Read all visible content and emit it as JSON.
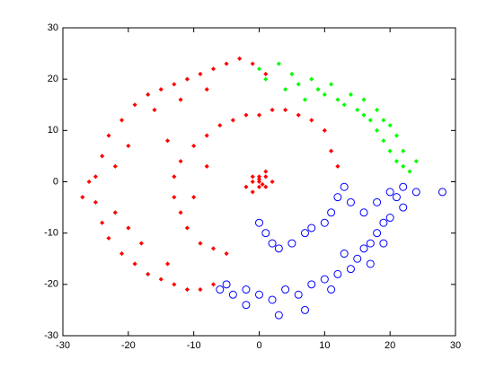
{
  "chart_data": {
    "type": "scatter",
    "xlim": [
      -30,
      30
    ],
    "ylim": [
      -30,
      30
    ],
    "xticks": [
      -30,
      -20,
      -10,
      0,
      10,
      20,
      30
    ],
    "yticks": [
      -30,
      -20,
      -10,
      0,
      10,
      20,
      30
    ],
    "series": [
      {
        "color": "#ff0000",
        "marker": "dot",
        "x": [
          -27,
          -25,
          -24,
          -23,
          -21,
          -19,
          -17,
          -15,
          -13,
          -11,
          -9,
          -7,
          -5,
          -3,
          -1,
          1,
          -25,
          -24,
          -23,
          -21,
          -19,
          -17,
          -15,
          -13,
          -11,
          -9,
          -7,
          -20,
          -22,
          -22,
          -18,
          -16,
          -12,
          -8,
          -26,
          -20,
          -14,
          8,
          6,
          4,
          2,
          0,
          -2,
          -4,
          -6,
          -8,
          -10,
          -12,
          -13,
          -13,
          -12,
          -11,
          -9,
          -7,
          -5,
          10,
          11,
          12,
          -14,
          -10,
          -8,
          0,
          1,
          -1,
          0,
          1,
          -1,
          2,
          0,
          -2,
          1,
          -1,
          0,
          0.5
        ],
        "values": [
          -3,
          1,
          5,
          9,
          12,
          15,
          17,
          18,
          19,
          20,
          21,
          22,
          23,
          24,
          23,
          21,
          -4,
          -8,
          -11,
          -14,
          -16,
          -18,
          -19,
          -20,
          -21,
          -21,
          -20,
          7,
          3,
          -6,
          -12,
          14,
          16,
          18,
          0,
          -9,
          -16,
          12,
          13,
          14,
          14,
          13,
          13,
          12,
          11,
          9,
          7,
          4,
          1,
          -3,
          -6,
          -9,
          -12,
          -13,
          -14,
          10,
          6,
          3,
          8,
          -3,
          3,
          0,
          1,
          0,
          1,
          -1,
          1,
          0,
          -1,
          -1,
          2,
          -2,
          0.5,
          -0.5
        ]
      },
      {
        "color": "#00ff00",
        "marker": "dot",
        "x": [
          0,
          1,
          3,
          5,
          6,
          8,
          9,
          10,
          11,
          12,
          13,
          14,
          15,
          16,
          17,
          18,
          18,
          19,
          20,
          20,
          21,
          21,
          22,
          23,
          22,
          19,
          7,
          4,
          16,
          24
        ],
        "values": [
          22,
          20,
          23,
          21,
          19,
          20,
          18,
          17,
          19,
          16,
          15,
          17,
          14,
          13,
          12,
          14,
          10,
          8,
          11,
          6,
          9,
          4,
          3,
          2,
          6,
          12,
          16,
          18,
          16,
          4
        ]
      },
      {
        "color": "#0000ff",
        "marker": "circle",
        "x": [
          0,
          1,
          2,
          3,
          5,
          7,
          8,
          10,
          11,
          12,
          13,
          14,
          16,
          18,
          20,
          21,
          22,
          24,
          28,
          19,
          20,
          22,
          -5,
          -6,
          -4,
          -2,
          0,
          2,
          4,
          6,
          8,
          10,
          12,
          14,
          15,
          16,
          17,
          18,
          19,
          3,
          -2,
          7,
          11,
          13,
          17
        ],
        "values": [
          -8,
          -10,
          -12,
          -13,
          -12,
          -10,
          -9,
          -8,
          -6,
          -3,
          -1,
          -4,
          -6,
          -4,
          -2,
          -3,
          -1,
          -2,
          -2,
          -8,
          -7,
          -5,
          -20,
          -21,
          -22,
          -21,
          -22,
          -23,
          -21,
          -22,
          -20,
          -19,
          -18,
          -17,
          -15,
          -13,
          -12,
          -10,
          -12,
          -26,
          -24,
          -25,
          -21,
          -14,
          -16
        ]
      }
    ]
  }
}
